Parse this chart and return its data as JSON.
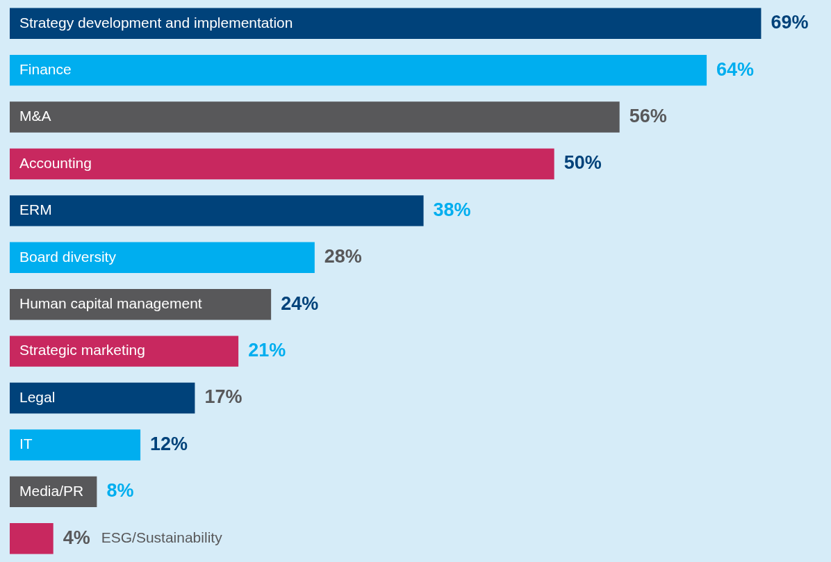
{
  "chart_data": {
    "type": "bar",
    "orientation": "horizontal",
    "categories": [
      "Strategy development and implementation",
      "Finance",
      "M&A",
      "Accounting",
      "ERM",
      "Board diversity",
      "Human capital management",
      "Strategic marketing",
      "Legal",
      "IT",
      "Media/PR",
      "ESG/Sustainability"
    ],
    "values": [
      69,
      64,
      56,
      50,
      38,
      28,
      24,
      21,
      17,
      12,
      8,
      4
    ],
    "colors": [
      "#00427a",
      "#00aeef",
      "#58585a",
      "#c8285f",
      "#00427a",
      "#00aeef",
      "#58585a",
      "#c8285f",
      "#00427a",
      "#00aeef",
      "#58585a",
      "#c8285f"
    ],
    "value_labels": [
      "69%",
      "64%",
      "56%",
      "50%",
      "38%",
      "28%",
      "24%",
      "21%",
      "17%",
      "12%",
      "8%",
      "4%"
    ],
    "legend": false
  }
}
